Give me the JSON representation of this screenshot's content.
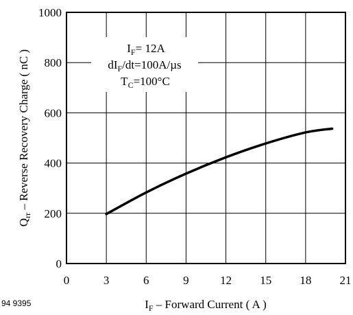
{
  "figure_id": "94 9395",
  "chart_data": {
    "type": "line",
    "xlabel": {
      "main": "I",
      "sub": "F",
      "rest": " – Forward Current ( A )"
    },
    "ylabel": {
      "main": "Q",
      "sub": "rr",
      "rest": " – Reverse Recovery Charge ( nC )"
    },
    "x_ticks": [
      "0",
      "3",
      "6",
      "9",
      "12",
      "15",
      "18",
      "21"
    ],
    "y_ticks": [
      "0",
      "200",
      "400",
      "600",
      "800",
      "1000"
    ],
    "xlim": [
      0,
      21
    ],
    "ylim": [
      0,
      1000
    ],
    "grid": true,
    "annotations": [
      {
        "pre": "I",
        "sub": "F",
        "post": "= 12A"
      },
      {
        "pre": "dI",
        "sub": "F",
        "post": "/dt=100A/µs"
      },
      {
        "pre": "T",
        "sub": "C",
        "post": "=100°C"
      }
    ],
    "series": [
      {
        "color": "#000000",
        "x": [
          3,
          6,
          9,
          12,
          15,
          18,
          20
        ],
        "y": [
          197,
          283,
          358,
          423,
          478,
          522,
          537
        ]
      }
    ]
  }
}
